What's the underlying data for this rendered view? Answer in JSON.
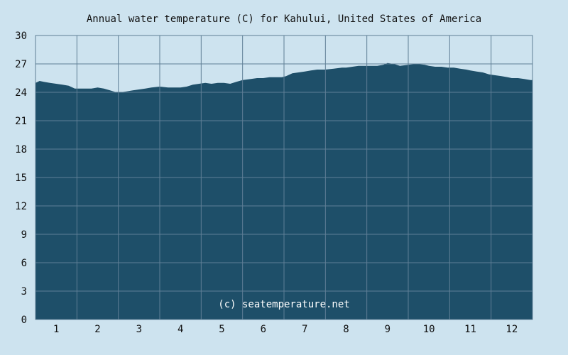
{
  "chart_data": {
    "type": "area",
    "title": "Annual water temperature (C) for Kahului, United States of America",
    "watermark": "(c) seatemperature.net",
    "xlabel": "",
    "ylabel": "",
    "x_tick_labels": [
      "1",
      "2",
      "3",
      "4",
      "5",
      "6",
      "7",
      "8",
      "9",
      "10",
      "11",
      "12"
    ],
    "y_ticks": [
      0,
      3,
      6,
      9,
      12,
      15,
      18,
      21,
      24,
      27,
      30
    ],
    "ylim": [
      0,
      30
    ],
    "xlim": [
      0.5,
      12.5
    ],
    "grid": true,
    "colors": {
      "background": "#cde3ef",
      "plot_background": "#cde3ef",
      "area_fill": "#1e4f69",
      "grid": "#5f7f96"
    },
    "series": [
      {
        "x": [
          0.5,
          0.6,
          0.7,
          0.85,
          1.0,
          1.15,
          1.3,
          1.45,
          1.55,
          1.7,
          1.85,
          2.0,
          2.15,
          2.3,
          2.45,
          2.55,
          2.7,
          2.85,
          3.0,
          3.15,
          3.3,
          3.5,
          3.7,
          3.9,
          4.0,
          4.15,
          4.3,
          4.45,
          4.6,
          4.75,
          4.9,
          5.05,
          5.2,
          5.35,
          5.5,
          5.7,
          5.85,
          6.0,
          6.15,
          6.3,
          6.45,
          6.55,
          6.7,
          6.85,
          7.0,
          7.15,
          7.3,
          7.5,
          7.7,
          7.9,
          8.0,
          8.15,
          8.3,
          8.45,
          8.6,
          8.75,
          8.9,
          9.0,
          9.15,
          9.3,
          9.5,
          9.7,
          9.9,
          10.0,
          10.15,
          10.3,
          10.45,
          10.6,
          10.75,
          10.9,
          11.0,
          11.15,
          11.3,
          11.45,
          11.6,
          11.75,
          11.9,
          12.0,
          12.15,
          12.3,
          12.45,
          12.5
        ],
        "values": [
          25.0,
          25.2,
          25.1,
          25.0,
          24.9,
          24.8,
          24.7,
          24.4,
          24.4,
          24.4,
          24.4,
          24.5,
          24.4,
          24.2,
          24.0,
          24.0,
          24.1,
          24.2,
          24.3,
          24.4,
          24.5,
          24.6,
          24.5,
          24.5,
          24.5,
          24.6,
          24.8,
          24.9,
          25.0,
          24.9,
          25.0,
          25.0,
          24.9,
          25.1,
          25.3,
          25.4,
          25.5,
          25.5,
          25.6,
          25.6,
          25.6,
          25.7,
          26.0,
          26.1,
          26.2,
          26.3,
          26.4,
          26.4,
          26.5,
          26.6,
          26.6,
          26.7,
          26.8,
          26.8,
          26.8,
          26.8,
          26.9,
          27.1,
          27.0,
          26.8,
          26.9,
          27.0,
          26.9,
          26.8,
          26.7,
          26.7,
          26.6,
          26.6,
          26.5,
          26.4,
          26.3,
          26.2,
          26.1,
          25.9,
          25.8,
          25.7,
          25.6,
          25.5,
          25.5,
          25.4,
          25.3,
          25.3
        ]
      }
    ]
  }
}
